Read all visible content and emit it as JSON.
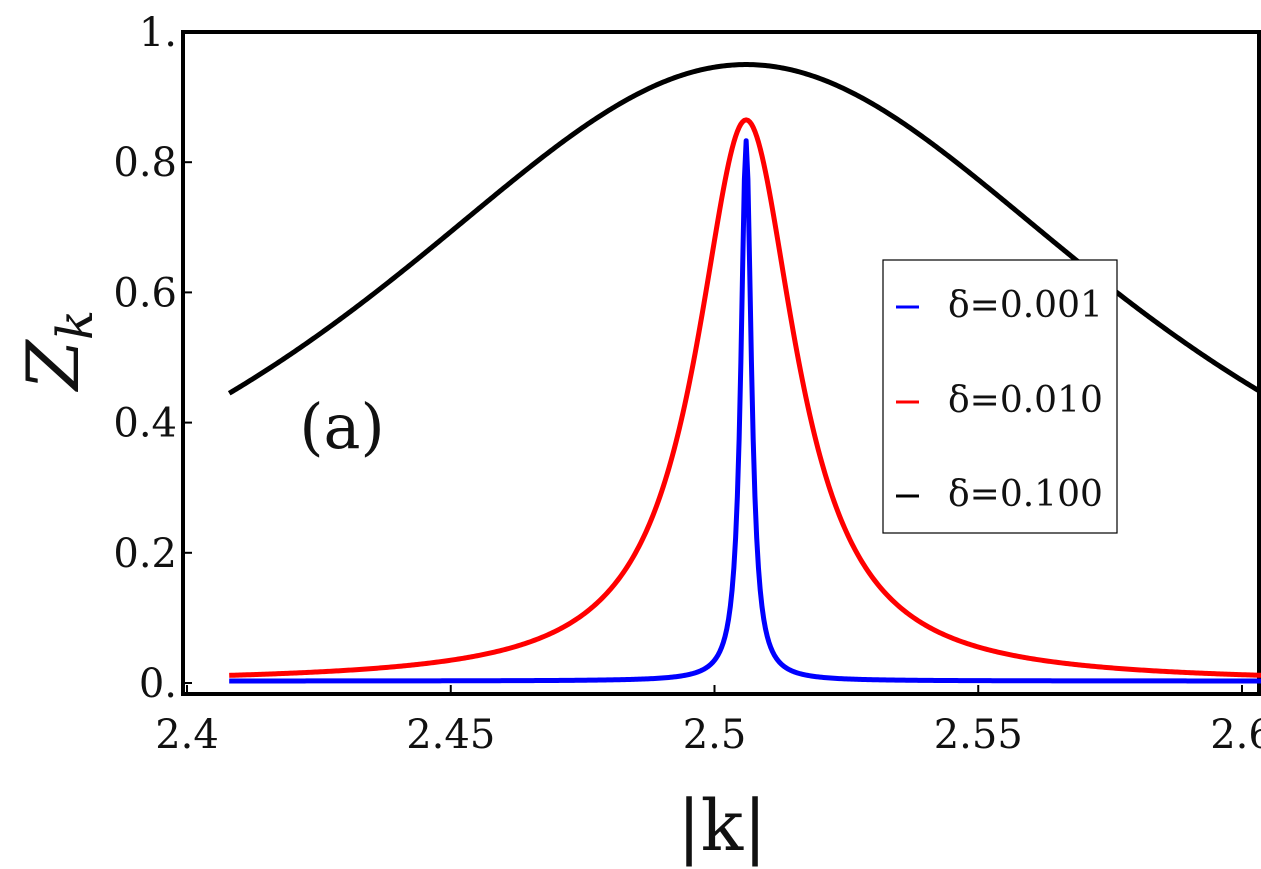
{
  "chart_data": {
    "type": "line",
    "title": "",
    "xlabel": "|k|",
    "ylabel": "Z_k",
    "ylabel_main": "Z",
    "ylabel_sub": "k",
    "xlim": [
      2.4,
      2.61
    ],
    "ylim": [
      -0.02,
      1.0
    ],
    "xticks": [
      2.4,
      2.45,
      2.5,
      2.55,
      2.6
    ],
    "xtick_labels": [
      "2.4",
      "2.45",
      "2.5",
      "2.55",
      "2.6"
    ],
    "yticks": [
      0.0,
      0.2,
      0.4,
      0.6,
      0.8,
      1.0
    ],
    "ytick_labels": [
      "0.",
      "0.2",
      "0.4",
      "0.6",
      "0.8",
      "1."
    ],
    "grid": false,
    "legend_position": "right",
    "annotation": "(a)",
    "peak_x": 2.506,
    "x_range": [
      2.408,
      2.608
    ],
    "series": [
      {
        "name": "δ=0.001",
        "color": "#0000ff",
        "delta": 0.001,
        "baseline": 0.003,
        "peak": 0.83,
        "width": 0.0012
      },
      {
        "name": "δ=0.010",
        "color": "#ff0000",
        "delta": 0.01,
        "baseline": 0.0,
        "peak": 0.865,
        "width": 0.0115
      },
      {
        "name": "δ=0.100",
        "color": "#000000",
        "delta": 0.1,
        "baseline": 0.0,
        "peak": 0.95,
        "width": 0.092
      }
    ]
  }
}
